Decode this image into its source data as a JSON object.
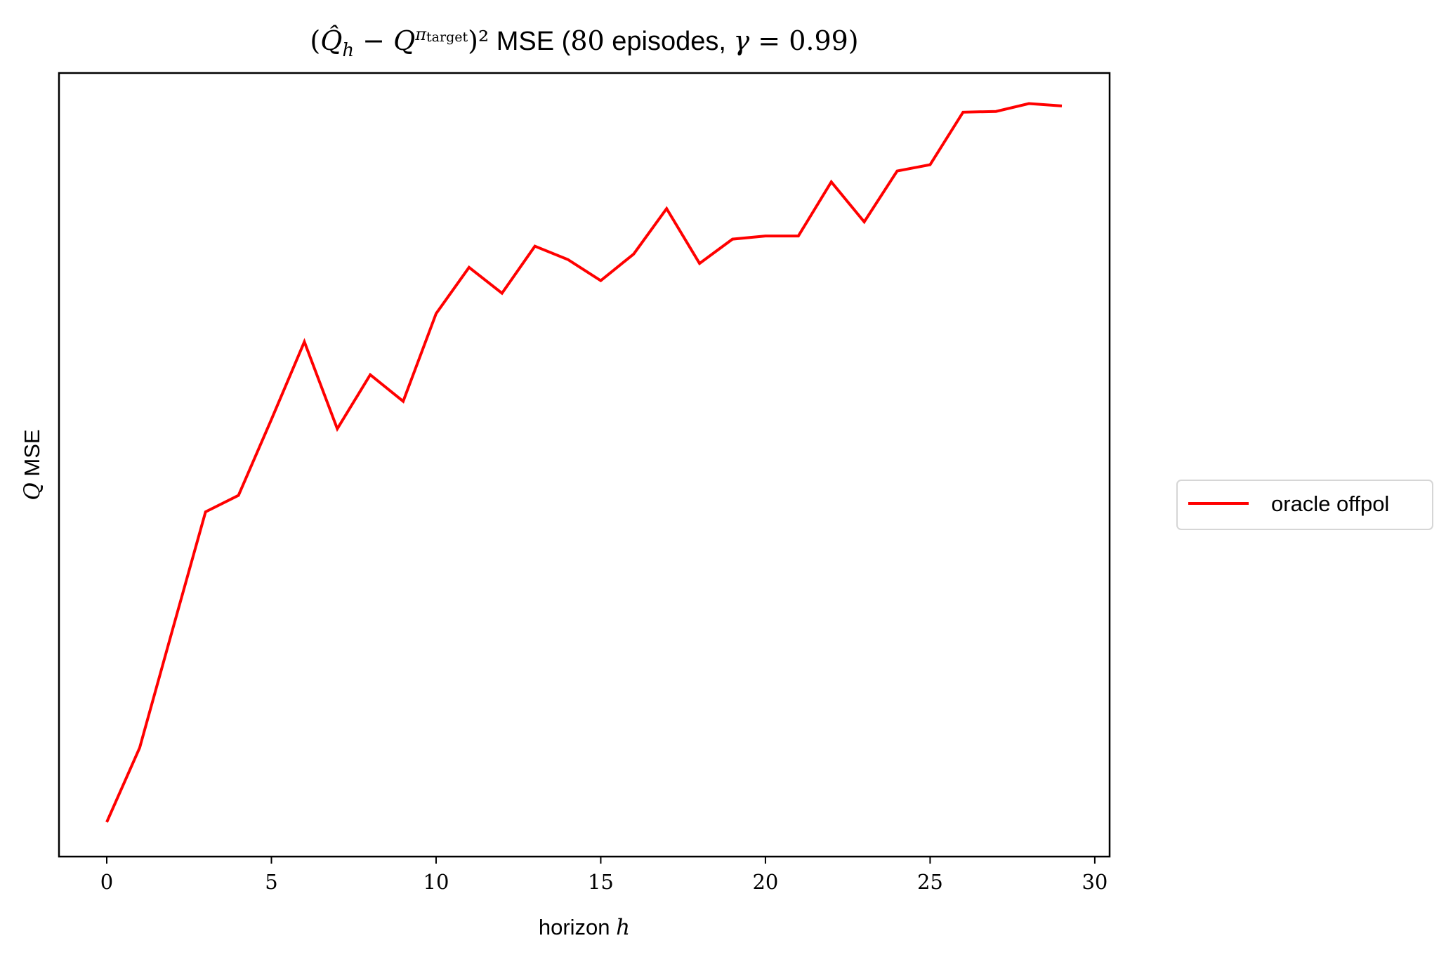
{
  "chart_data": {
    "type": "line",
    "title": "(Q̂h − Qπtarget)² MSE (80 episodes, γ = 0.99)",
    "title_parts": {
      "q_hat": "Q̂",
      "sub_h": "h",
      "minus": " − ",
      "q": "Q",
      "sup_pi": "π",
      "sup_target": "target",
      "close_sq": ")²",
      "mse_text": " MSE (",
      "episodes_num": "80",
      "episodes_text": " episodes, ",
      "gamma": "γ",
      "equals": " = ",
      "gamma_val": "0.99",
      "close": ")"
    },
    "xlabel": "horizon h",
    "xlabel_parts": {
      "text": "horizon ",
      "var": "h"
    },
    "ylabel": "Q MSE",
    "ylabel_parts": {
      "var": "Q",
      "text": " MSE"
    },
    "xlim": [
      -1.45,
      30.45
    ],
    "ylim": [
      0,
      1
    ],
    "x_ticks": [
      0,
      5,
      10,
      15,
      20,
      25,
      30
    ],
    "y_ticks_visible": false,
    "grid": false,
    "legend_position": "center-right, outside plot",
    "series": [
      {
        "name": "oracle offpol",
        "color": "#ff0000",
        "x": [
          0,
          1,
          2,
          3,
          4,
          5,
          6,
          7,
          8,
          9,
          10,
          11,
          12,
          13,
          14,
          15,
          16,
          17,
          18,
          19,
          20,
          21,
          22,
          23,
          24,
          25,
          26,
          27,
          28,
          29
        ],
        "y": [
          0.044,
          0.139,
          0.29,
          0.44,
          0.461,
          0.558,
          0.657,
          0.546,
          0.615,
          0.581,
          0.693,
          0.752,
          0.719,
          0.779,
          0.762,
          0.735,
          0.769,
          0.827,
          0.757,
          0.788,
          0.792,
          0.792,
          0.861,
          0.81,
          0.875,
          0.883,
          0.95,
          0.951,
          0.961,
          0.958
        ]
      }
    ]
  }
}
